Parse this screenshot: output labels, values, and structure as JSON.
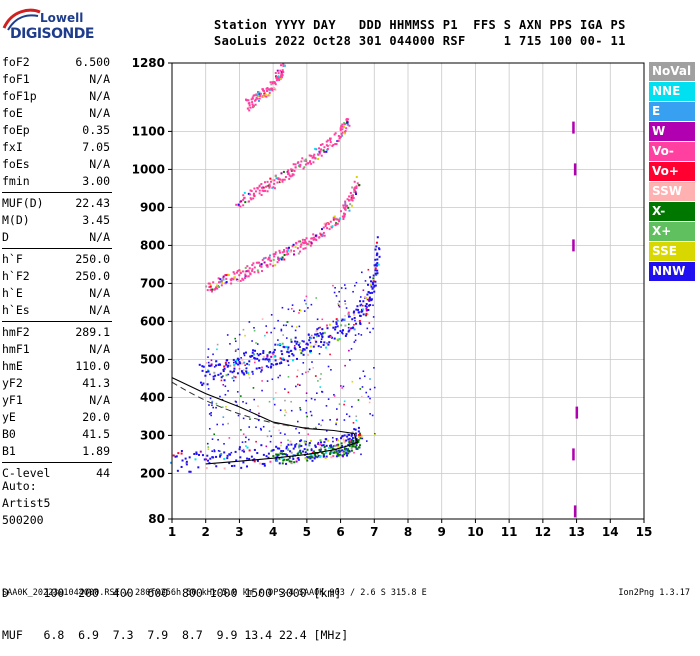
{
  "logo": {
    "line1": "Lowell",
    "line2": "DIGISONDE"
  },
  "header": {
    "line1": "Station YYYY DAY   DDD HHMMSS P1  FFS S AXN PPS IGA PS",
    "line2": "SaoLuis 2022 Oct28 301 044000 RSF     1 715 100 00- 11"
  },
  "params": [
    [
      {
        "k": "foF2",
        "v": "6.500"
      },
      {
        "k": "foF1",
        "v": "N/A"
      },
      {
        "k": "foF1p",
        "v": "N/A"
      },
      {
        "k": "foE",
        "v": "N/A"
      },
      {
        "k": "foEp",
        "v": "0.35"
      },
      {
        "k": "fxI",
        "v": "7.05"
      },
      {
        "k": "foEs",
        "v": "N/A"
      },
      {
        "k": "fmin",
        "v": "3.00"
      }
    ],
    [
      {
        "k": "MUF(D)",
        "v": "22.43"
      },
      {
        "k": "M(D)",
        "v": "3.45"
      },
      {
        "k": "D",
        "v": "N/A"
      }
    ],
    [
      {
        "k": "h`F",
        "v": "250.0"
      },
      {
        "k": "h`F2",
        "v": "250.0"
      },
      {
        "k": "h`E",
        "v": "N/A"
      },
      {
        "k": "h`Es",
        "v": "N/A"
      }
    ],
    [
      {
        "k": "hmF2",
        "v": "289.1"
      },
      {
        "k": "hmF1",
        "v": "N/A"
      },
      {
        "k": "hmE",
        "v": "110.0"
      },
      {
        "k": "yF2",
        "v": "41.3"
      },
      {
        "k": "yF1",
        "v": "N/A"
      },
      {
        "k": "yE",
        "v": "20.0"
      },
      {
        "k": "B0",
        "v": "41.5"
      },
      {
        "k": "B1",
        "v": "1.89"
      }
    ],
    [
      {
        "k": "C-level",
        "v": "44"
      }
    ]
  ],
  "auto": {
    "line1": "Auto:",
    "line2": "Artist5",
    "line3": "500200"
  },
  "bottom": {
    "d_row": "D     100  200  400  600  800 1000 1500 3000 [km]",
    "muf_row": "MUF   6.8  6.9  7.3  7.9  8.7  9.9 13.4 22.4 [MHz]"
  },
  "footer": {
    "left": "SAA0K_2022301044000.RSF / 280fx256h 50 kHz 5.0 km / DPS-4 SAA0K 903 / 2.6 S 315.8 E",
    "right": "Ion2Png 1.3.17"
  },
  "legend": [
    {
      "label": "NoVal",
      "color": "#a0a0a0"
    },
    {
      "label": "NNE",
      "color": "#00e0f0"
    },
    {
      "label": "E",
      "color": "#38a0f0"
    },
    {
      "label": "W",
      "color": "#b000b0"
    },
    {
      "label": "Vo-",
      "color": "#ff40a0"
    },
    {
      "label": "Vo+",
      "color": "#ff0030"
    },
    {
      "label": "SSW",
      "color": "#ffb0b0"
    },
    {
      "label": "X-",
      "color": "#007800"
    },
    {
      "label": "X+",
      "color": "#60c060"
    },
    {
      "label": "SSE",
      "color": "#d8d800"
    },
    {
      "label": "NNW",
      "color": "#2010f0"
    }
  ],
  "chart_data": {
    "type": "scatter",
    "title": "",
    "xlabel": "",
    "ylabel": "",
    "xlim": [
      1,
      15
    ],
    "ylim": [
      80,
      1280
    ],
    "x_ticks": [
      1,
      2,
      3,
      4,
      5,
      6,
      7,
      8,
      9,
      10,
      11,
      12,
      13,
      14,
      15
    ],
    "y_ticks": [
      80,
      200,
      300,
      400,
      500,
      600,
      700,
      800,
      900,
      1000,
      1100,
      1280
    ],
    "grid": true,
    "traces": [
      {
        "name": "O1",
        "color": "#2010f0",
        "points": [
          [
            1.0,
            232
          ],
          [
            2.0,
            238
          ],
          [
            3.0,
            245
          ],
          [
            4.0,
            252
          ],
          [
            4.5,
            258
          ],
          [
            5.0,
            263
          ],
          [
            5.5,
            268
          ],
          [
            6.0,
            275
          ],
          [
            6.3,
            283
          ],
          [
            6.5,
            300
          ]
        ]
      },
      {
        "name": "O2",
        "color": "#2010f0",
        "points": [
          [
            1.8,
            462
          ],
          [
            2.5,
            475
          ],
          [
            3.0,
            487
          ],
          [
            3.5,
            500
          ],
          [
            4.0,
            513
          ],
          [
            4.5,
            527
          ],
          [
            5.0,
            543
          ],
          [
            5.5,
            560
          ],
          [
            6.0,
            585
          ],
          [
            6.5,
            615
          ],
          [
            6.8,
            660
          ],
          [
            7.0,
            720
          ],
          [
            7.1,
            800
          ]
        ]
      },
      {
        "name": "O3",
        "color": "#ff40a0",
        "points": [
          [
            2.0,
            693
          ],
          [
            2.5,
            710
          ],
          [
            3.0,
            725
          ],
          [
            3.5,
            745
          ],
          [
            4.0,
            765
          ],
          [
            4.5,
            787
          ],
          [
            5.0,
            812
          ],
          [
            5.5,
            845
          ],
          [
            6.0,
            882
          ],
          [
            6.3,
            925
          ],
          [
            6.5,
            975
          ]
        ]
      },
      {
        "name": "O4",
        "color": "#ff40a0",
        "points": [
          [
            2.9,
            918
          ],
          [
            3.5,
            944
          ],
          [
            4.0,
            968
          ],
          [
            4.5,
            995
          ],
          [
            5.0,
            1025
          ],
          [
            5.5,
            1057
          ],
          [
            6.0,
            1098
          ],
          [
            6.2,
            1130
          ]
        ]
      },
      {
        "name": "O5",
        "color": "#ff40a0",
        "points": [
          [
            3.2,
            1172
          ],
          [
            3.5,
            1190
          ],
          [
            3.8,
            1210
          ],
          [
            4.1,
            1240
          ],
          [
            4.3,
            1272
          ]
        ]
      },
      {
        "name": "X1",
        "color": "#007800",
        "points": [
          [
            4.0,
            238
          ],
          [
            5.0,
            250
          ],
          [
            5.8,
            262
          ],
          [
            6.3,
            272
          ],
          [
            6.6,
            295
          ]
        ]
      },
      {
        "name": "model",
        "color": "#000000",
        "points": [
          [
            2.0,
            225
          ],
          [
            3.0,
            232
          ],
          [
            4.0,
            240
          ],
          [
            5.0,
            250
          ],
          [
            5.8,
            262
          ],
          [
            6.2,
            272
          ],
          [
            6.5,
            282
          ],
          [
            6.4,
            305
          ],
          [
            5.8,
            313
          ],
          [
            5.0,
            318
          ],
          [
            4.0,
            335
          ],
          [
            3.0,
            375
          ],
          [
            2.0,
            410
          ],
          [
            1.0,
            452
          ]
        ]
      },
      {
        "name": "W-vert",
        "color": "#b000b0",
        "points": [
          [
            12.9,
            1110
          ],
          [
            12.95,
            1000
          ],
          [
            12.9,
            800
          ],
          [
            13.0,
            360
          ],
          [
            12.9,
            250
          ],
          [
            12.95,
            100
          ]
        ]
      }
    ]
  }
}
